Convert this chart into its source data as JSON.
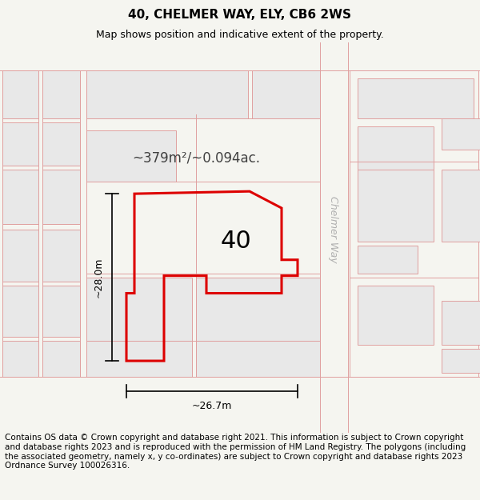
{
  "title": "40, CHELMER WAY, ELY, CB6 2WS",
  "subtitle": "Map shows position and indicative extent of the property.",
  "footer": "Contains OS data © Crown copyright and database right 2021. This information is subject to Crown copyright and database rights 2023 and is reproduced with the permission of HM Land Registry. The polygons (including the associated geometry, namely x, y co-ordinates) are subject to Crown copyright and database rights 2023 Ordnance Survey 100026316.",
  "label_40": "40",
  "area_text": "~379m²/~0.094ac.",
  "width_label": "~26.7m",
  "height_label": "~28.0m",
  "road_label": "Chelmer Way",
  "bg_color": "#f5f5f0",
  "map_white": "#ffffff",
  "block_gray": "#e8e8e8",
  "block_ec": "#e0a0a0",
  "highlight_color": "#dd0000",
  "road_label_color": "#b0b0b0",
  "title_fontsize": 11,
  "subtitle_fontsize": 9,
  "footer_fontsize": 7.5,
  "label40_fontsize": 22,
  "area_fontsize": 12,
  "dim_fontsize": 9
}
